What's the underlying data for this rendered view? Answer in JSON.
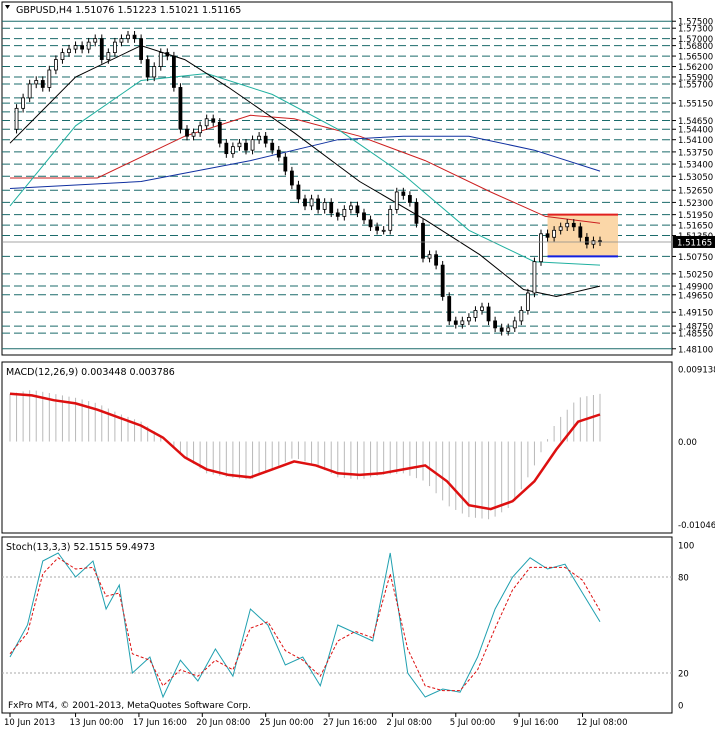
{
  "chart_data": [
    {
      "type": "candlestick",
      "title": "GBPUSD,H4  1.51076 1.51223 1.51021 1.51165",
      "symbol": "GBPUSD",
      "timeframe": "H4",
      "last_bar": {
        "open": 1.51076,
        "high": 1.51223,
        "low": 1.51021,
        "close": 1.51165
      },
      "current_price_label": "1.51165",
      "y_ticks": [
        "1.57500",
        "1.57300",
        "1.57000",
        "1.56800",
        "1.56500",
        "1.56200",
        "1.55900",
        "1.55700",
        "1.55150",
        "1.54650",
        "1.54400",
        "1.54100",
        "1.53750",
        "1.53400",
        "1.53050",
        "1.52650",
        "1.52300",
        "1.51950",
        "1.51650",
        "1.51350",
        "1.50750",
        "1.50250",
        "1.49900",
        "1.49650",
        "1.49150",
        "1.48750",
        "1.48550",
        "1.48100"
      ],
      "ylim": [
        1.4795,
        1.5765
      ],
      "horizontal_levels": [
        1.575,
        1.573,
        1.57,
        1.568,
        1.565,
        1.562,
        1.559,
        1.557,
        1.553,
        1.5515,
        1.549,
        1.5465,
        1.544,
        1.541,
        1.5375,
        1.534,
        1.5305,
        1.5265,
        1.523,
        1.5195,
        1.5165,
        1.5135,
        1.5075,
        1.5025,
        1.499,
        1.4965,
        1.4915,
        1.4875,
        1.4855,
        1.481
      ],
      "range_box": {
        "top": 1.5195,
        "bottom": 1.5075,
        "top_color": "#e02020",
        "bottom_color": "#1020e0",
        "fill": "#fbd7a8"
      },
      "price_path": [
        [
          0,
          1.544
        ],
        [
          3,
          1.55
        ],
        [
          6,
          1.553
        ],
        [
          9,
          1.557
        ],
        [
          12,
          1.558
        ],
        [
          15,
          1.556
        ],
        [
          18,
          1.561
        ],
        [
          21,
          1.564
        ],
        [
          24,
          1.566
        ],
        [
          27,
          1.567
        ],
        [
          30,
          1.568
        ],
        [
          33,
          1.567
        ],
        [
          36,
          1.569
        ],
        [
          39,
          1.57
        ],
        [
          42,
          1.564
        ],
        [
          45,
          1.566
        ],
        [
          48,
          1.569
        ],
        [
          51,
          1.57
        ],
        [
          54,
          1.571
        ],
        [
          57,
          1.57
        ],
        [
          60,
          1.564
        ],
        [
          63,
          1.559
        ],
        [
          66,
          1.562
        ],
        [
          69,
          1.566
        ],
        [
          72,
          1.565
        ],
        [
          75,
          1.556
        ],
        [
          78,
          1.544
        ],
        [
          81,
          1.542
        ],
        [
          84,
          1.543
        ],
        [
          87,
          1.545
        ],
        [
          90,
          1.547
        ],
        [
          93,
          1.546
        ],
        [
          96,
          1.54
        ],
        [
          99,
          1.537
        ],
        [
          102,
          1.539
        ],
        [
          105,
          1.54
        ],
        [
          108,
          1.538
        ],
        [
          111,
          1.541
        ],
        [
          114,
          1.542
        ],
        [
          117,
          1.54
        ],
        [
          120,
          1.538
        ],
        [
          123,
          1.536
        ],
        [
          126,
          1.532
        ],
        [
          129,
          1.528
        ],
        [
          132,
          1.524
        ],
        [
          135,
          1.522
        ],
        [
          138,
          1.524
        ],
        [
          141,
          1.521
        ],
        [
          144,
          1.523
        ],
        [
          147,
          1.52
        ],
        [
          150,
          1.519
        ],
        [
          153,
          1.521
        ],
        [
          156,
          1.522
        ],
        [
          159,
          1.52
        ],
        [
          162,
          1.518
        ],
        [
          165,
          1.516
        ],
        [
          168,
          1.515
        ],
        [
          171,
          1.515
        ],
        [
          174,
          1.521
        ],
        [
          177,
          1.526
        ],
        [
          180,
          1.525
        ],
        [
          183,
          1.523
        ],
        [
          186,
          1.517
        ],
        [
          189,
          1.507
        ],
        [
          192,
          1.508
        ],
        [
          195,
          1.505
        ],
        [
          198,
          1.496
        ],
        [
          201,
          1.489
        ],
        [
          204,
          1.488
        ],
        [
          207,
          1.489
        ],
        [
          210,
          1.49
        ],
        [
          213,
          1.492
        ],
        [
          216,
          1.493
        ],
        [
          219,
          1.489
        ],
        [
          222,
          1.487
        ],
        [
          225,
          1.486
        ],
        [
          228,
          1.487
        ],
        [
          231,
          1.489
        ],
        [
          234,
          1.492
        ],
        [
          237,
          1.497
        ],
        [
          240,
          1.506
        ],
        [
          243,
          1.514
        ],
        [
          246,
          1.513
        ],
        [
          249,
          1.515
        ],
        [
          252,
          1.516
        ],
        [
          255,
          1.517
        ],
        [
          258,
          1.516
        ],
        [
          261,
          1.513
        ],
        [
          264,
          1.511
        ],
        [
          267,
          1.512
        ],
        [
          270,
          1.5117
        ]
      ],
      "moving_averages": [
        {
          "color": "#cc2020",
          "points": [
            [
              0,
              1.53
            ],
            [
              40,
              1.53
            ],
            [
              80,
              1.542
            ],
            [
              110,
              1.548
            ],
            [
              130,
              1.547
            ],
            [
              160,
              1.542
            ],
            [
              190,
              1.535
            ],
            [
              220,
              1.526
            ],
            [
              245,
              1.519
            ],
            [
              270,
              1.517
            ]
          ]
        },
        {
          "color": "#1030a0",
          "points": [
            [
              0,
              1.527
            ],
            [
              60,
              1.529
            ],
            [
              110,
              1.535
            ],
            [
              150,
              1.541
            ],
            [
              180,
              1.542
            ],
            [
              210,
              1.542
            ],
            [
              240,
              1.538
            ],
            [
              270,
              1.532
            ]
          ]
        },
        {
          "color": "#20b0a0",
          "points": [
            [
              0,
              1.522
            ],
            [
              30,
              1.545
            ],
            [
              60,
              1.558
            ],
            [
              90,
              1.56
            ],
            [
              120,
              1.554
            ],
            [
              150,
              1.544
            ],
            [
              180,
              1.531
            ],
            [
              210,
              1.515
            ],
            [
              240,
              1.506
            ],
            [
              270,
              1.505
            ]
          ]
        },
        {
          "color": "#000000",
          "points": [
            [
              0,
              1.54
            ],
            [
              30,
              1.559
            ],
            [
              60,
              1.568
            ],
            [
              80,
              1.564
            ],
            [
              100,
              1.556
            ],
            [
              130,
              1.543
            ],
            [
              160,
              1.529
            ],
            [
              190,
              1.518
            ],
            [
              215,
              1.508
            ],
            [
              235,
              1.498
            ],
            [
              250,
              1.496
            ],
            [
              270,
              1.499
            ]
          ]
        }
      ],
      "x_ticks": [
        {
          "t": 0,
          "label": "10 Jun 2013"
        },
        {
          "t": 30,
          "label": "13 Jun 00:00"
        },
        {
          "t": 59,
          "label": "17 Jun 16:00"
        },
        {
          "t": 88,
          "label": "20 Jun 08:00"
        },
        {
          "t": 117,
          "label": "25 Jun 00:00"
        },
        {
          "t": 146,
          "label": "27 Jun 16:00"
        },
        {
          "t": 175,
          "label": "2 Jul 08:00"
        },
        {
          "t": 204,
          "label": "5 Jul 00:00"
        },
        {
          "t": 233,
          "label": "9 Jul 16:00"
        },
        {
          "t": 262,
          "label": "12 Jul 08:00"
        }
      ]
    },
    {
      "type": "histogram+line",
      "title": "MACD(12,26,9) 0.003448 0.003786",
      "y_ticks": [
        "0.009138",
        "0.00",
        "-0.01046"
      ],
      "ylim": [
        -0.0115,
        0.01
      ],
      "tick_values": [
        0.009138,
        0.0,
        -0.01046
      ],
      "histogram": [
        [
          0,
          0.006
        ],
        [
          10,
          0.0065
        ],
        [
          20,
          0.006
        ],
        [
          30,
          0.0055
        ],
        [
          40,
          0.0048
        ],
        [
          50,
          0.0035
        ],
        [
          60,
          0.0025
        ],
        [
          70,
          0.0005
        ],
        [
          80,
          -0.002
        ],
        [
          90,
          -0.004
        ],
        [
          100,
          -0.0045
        ],
        [
          110,
          -0.0048
        ],
        [
          120,
          -0.0035
        ],
        [
          130,
          -0.002
        ],
        [
          140,
          -0.003
        ],
        [
          150,
          -0.0045
        ],
        [
          160,
          -0.0048
        ],
        [
          170,
          -0.0042
        ],
        [
          180,
          -0.004
        ],
        [
          190,
          -0.005
        ],
        [
          200,
          -0.008
        ],
        [
          210,
          -0.0095
        ],
        [
          220,
          -0.0098
        ],
        [
          230,
          -0.008
        ],
        [
          240,
          -0.003
        ],
        [
          250,
          0.0025
        ],
        [
          260,
          0.0055
        ],
        [
          270,
          0.006
        ]
      ],
      "signal": {
        "color": "#dd1010",
        "points": [
          [
            0,
            0.006
          ],
          [
            10,
            0.0058
          ],
          [
            20,
            0.0052
          ],
          [
            30,
            0.0048
          ],
          [
            40,
            0.004
          ],
          [
            50,
            0.003
          ],
          [
            60,
            0.002
          ],
          [
            70,
            0.0005
          ],
          [
            80,
            -0.002
          ],
          [
            90,
            -0.0035
          ],
          [
            100,
            -0.0042
          ],
          [
            110,
            -0.0045
          ],
          [
            120,
            -0.0035
          ],
          [
            130,
            -0.0025
          ],
          [
            140,
            -0.003
          ],
          [
            150,
            -0.004
          ],
          [
            160,
            -0.0042
          ],
          [
            170,
            -0.004
          ],
          [
            180,
            -0.0035
          ],
          [
            190,
            -0.003
          ],
          [
            200,
            -0.005
          ],
          [
            210,
            -0.008
          ],
          [
            220,
            -0.0085
          ],
          [
            230,
            -0.0075
          ],
          [
            240,
            -0.005
          ],
          [
            250,
            -0.001
          ],
          [
            260,
            0.0025
          ],
          [
            270,
            0.0034
          ]
        ]
      }
    },
    {
      "type": "line",
      "title": "Stoch(13,3,3) 52.1515 59.4973",
      "y_ticks": [
        "100",
        "80",
        "20",
        "0"
      ],
      "ylim": [
        0,
        100
      ],
      "tick_values": [
        100,
        80,
        20,
        0
      ],
      "main": {
        "color": "#20a0b0",
        "points": [
          [
            0,
            30
          ],
          [
            8,
            50
          ],
          [
            15,
            90
          ],
          [
            22,
            95
          ],
          [
            30,
            80
          ],
          [
            38,
            90
          ],
          [
            44,
            60
          ],
          [
            50,
            75
          ],
          [
            56,
            20
          ],
          [
            64,
            30
          ],
          [
            70,
            5
          ],
          [
            78,
            28
          ],
          [
            86,
            15
          ],
          [
            94,
            35
          ],
          [
            102,
            18
          ],
          [
            110,
            60
          ],
          [
            118,
            50
          ],
          [
            126,
            25
          ],
          [
            134,
            30
          ],
          [
            142,
            12
          ],
          [
            150,
            50
          ],
          [
            158,
            45
          ],
          [
            166,
            40
          ],
          [
            174,
            95
          ],
          [
            182,
            20
          ],
          [
            190,
            5
          ],
          [
            198,
            10
          ],
          [
            206,
            8
          ],
          [
            214,
            30
          ],
          [
            222,
            60
          ],
          [
            230,
            80
          ],
          [
            238,
            92
          ],
          [
            246,
            85
          ],
          [
            254,
            88
          ],
          [
            262,
            70
          ],
          [
            270,
            52
          ]
        ]
      },
      "signal": {
        "color": "#dd1010",
        "points": [
          [
            0,
            32
          ],
          [
            8,
            45
          ],
          [
            15,
            82
          ],
          [
            22,
            92
          ],
          [
            30,
            85
          ],
          [
            38,
            86
          ],
          [
            44,
            68
          ],
          [
            50,
            70
          ],
          [
            56,
            32
          ],
          [
            64,
            28
          ],
          [
            70,
            12
          ],
          [
            78,
            22
          ],
          [
            86,
            18
          ],
          [
            94,
            28
          ],
          [
            102,
            22
          ],
          [
            110,
            48
          ],
          [
            118,
            52
          ],
          [
            126,
            34
          ],
          [
            134,
            28
          ],
          [
            142,
            18
          ],
          [
            150,
            40
          ],
          [
            158,
            46
          ],
          [
            166,
            42
          ],
          [
            174,
            82
          ],
          [
            182,
            35
          ],
          [
            190,
            12
          ],
          [
            198,
            9
          ],
          [
            206,
            9
          ],
          [
            214,
            22
          ],
          [
            222,
            48
          ],
          [
            230,
            72
          ],
          [
            238,
            86
          ],
          [
            246,
            86
          ],
          [
            254,
            86
          ],
          [
            262,
            78
          ],
          [
            270,
            59
          ]
        ]
      }
    }
  ],
  "footer": {
    "copyright": "FxPro MT4, © 2001-2013, MetaQuotes Software Corp."
  }
}
